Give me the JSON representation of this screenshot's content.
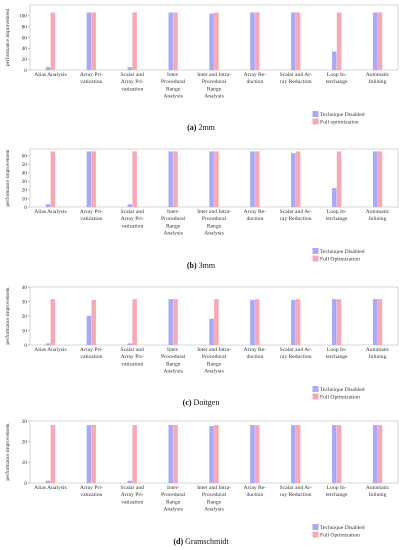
{
  "colors": {
    "technique_disabled": "#a9a9f5",
    "full_optimization": "#f5a9b5",
    "axis": "#bdbdbd",
    "grid": "#dddddd"
  },
  "chart_data": [
    {
      "type": "bar",
      "caption_letter": "(a)",
      "caption_name": "2mm",
      "ylabel": "performance improvement",
      "ylim": [
        0,
        120
      ],
      "yticks": [
        0,
        20,
        40,
        60,
        80,
        100
      ],
      "categories": [
        [
          "Alias Analysis"
        ],
        [
          "Array Pri-",
          "vatization"
        ],
        [
          "Scalar and",
          "Array Pri-",
          "vatization"
        ],
        [
          "Inter-",
          "Procedural",
          "Range",
          "Analysis"
        ],
        [
          "Inter and Intra-",
          "Procedural",
          "Range",
          "Analysis"
        ],
        [
          "Array Re-",
          "duction"
        ],
        [
          "Scalar and Ar-",
          "ray Reduction"
        ],
        [
          "Loop In-",
          "terchange"
        ],
        [
          "Automatic",
          "Inlining"
        ]
      ],
      "legend": [
        "Technique Disabled",
        "Full optimization"
      ],
      "series": [
        {
          "name": "Technique Disabled",
          "values": [
            5,
            106,
            5,
            106,
            104,
            106,
            106,
            34,
            106
          ]
        },
        {
          "name": "Full optimization",
          "values": [
            106,
            106,
            106,
            106,
            106,
            106,
            106,
            106,
            106
          ]
        }
      ]
    },
    {
      "type": "bar",
      "caption_letter": "(b)",
      "caption_name": "3mm",
      "ylabel": "performance improvement",
      "ylim": [
        0,
        68
      ],
      "yticks": [
        0,
        10,
        20,
        30,
        40,
        50,
        60
      ],
      "categories": [
        [
          "Alias Analysis"
        ],
        [
          "Array Pri-",
          "vatization"
        ],
        [
          "Scalar and",
          "Array Pri-",
          "vatization"
        ],
        [
          "Inter-",
          "Procedural",
          "Range",
          "Analysis"
        ],
        [
          "Inter and Intra-",
          "Procedural",
          "Range",
          "Analysis"
        ],
        [
          "Array Re-",
          "duction"
        ],
        [
          "Scalar and Ar-",
          "ray Reduction"
        ],
        [
          "Loop In-",
          "terchange"
        ],
        [
          "Automatic",
          "Inlining"
        ]
      ],
      "legend": [
        "Technique Disabled",
        "Full Optimization"
      ],
      "series": [
        {
          "name": "Technique Disabled",
          "values": [
            3,
            65,
            3,
            65,
            65,
            65,
            63,
            22,
            65
          ]
        },
        {
          "name": "Full Optimization",
          "values": [
            65,
            65,
            65,
            65,
            65,
            65,
            65,
            65,
            65
          ]
        }
      ]
    },
    {
      "type": "bar",
      "caption_letter": "(c)",
      "caption_name": "Doitgen",
      "ylabel": "performance improvement",
      "ylim": [
        0,
        40
      ],
      "yticks": [
        0,
        10,
        20,
        30,
        40
      ],
      "categories": [
        [
          "Alias Analysis"
        ],
        [
          "Array Pri-",
          "vatization"
        ],
        [
          "Scalar and",
          "Array Pri-",
          "vatization"
        ],
        [
          "Inter-",
          "Procedural",
          "Range",
          "Analysis"
        ],
        [
          "Inter and Intra-",
          "Procedural",
          "Range",
          "Analysis"
        ],
        [
          "Array Re-",
          "duction"
        ],
        [
          "Scalar and Ar-",
          "ray Reduction"
        ],
        [
          "Loop In-",
          "terchange"
        ],
        [
          "Automatic",
          "Inlining"
        ]
      ],
      "legend": [
        "Technique Disabled",
        "Full Optimization"
      ],
      "series": [
        {
          "name": "Technique Disabled",
          "values": [
            1,
            20,
            1,
            31.5,
            18,
            31,
            31,
            31.5,
            31.5
          ]
        },
        {
          "name": "Full Optimization",
          "values": [
            31.5,
            31,
            31.5,
            31.5,
            31.5,
            31.5,
            31.5,
            31.5,
            31.5
          ]
        }
      ]
    },
    {
      "type": "bar",
      "caption_letter": "(d)",
      "caption_name": "Gramschmidt",
      "ylabel": "performance improvement",
      "ylim": [
        0,
        30
      ],
      "yticks": [
        0,
        10,
        20,
        30
      ],
      "categories": [
        [
          "Alias Analysis"
        ],
        [
          "Array Pri-",
          "vatization"
        ],
        [
          "Scalar and",
          "Array Pri-",
          "vatization"
        ],
        [
          "Inter-",
          "Procedural",
          "Range",
          "Analysis"
        ],
        [
          "Inter and Intra-",
          "Procedural",
          "Range",
          "Analysis"
        ],
        [
          "Array Re-",
          "duction"
        ],
        [
          "Scalar and Ar-",
          "ray Reduction"
        ],
        [
          "Loop In-",
          "terchange"
        ],
        [
          "Automatic",
          "Inlining"
        ]
      ],
      "legend": [
        "Technique Disabled",
        "Full Optimization"
      ],
      "series": [
        {
          "name": "Technique Disabled",
          "values": [
            1,
            28,
            1,
            28,
            27.5,
            28,
            28,
            28,
            28
          ]
        },
        {
          "name": "Full Optimization",
          "values": [
            28,
            28,
            28,
            28,
            28,
            28,
            28,
            28,
            28
          ]
        }
      ]
    }
  ]
}
